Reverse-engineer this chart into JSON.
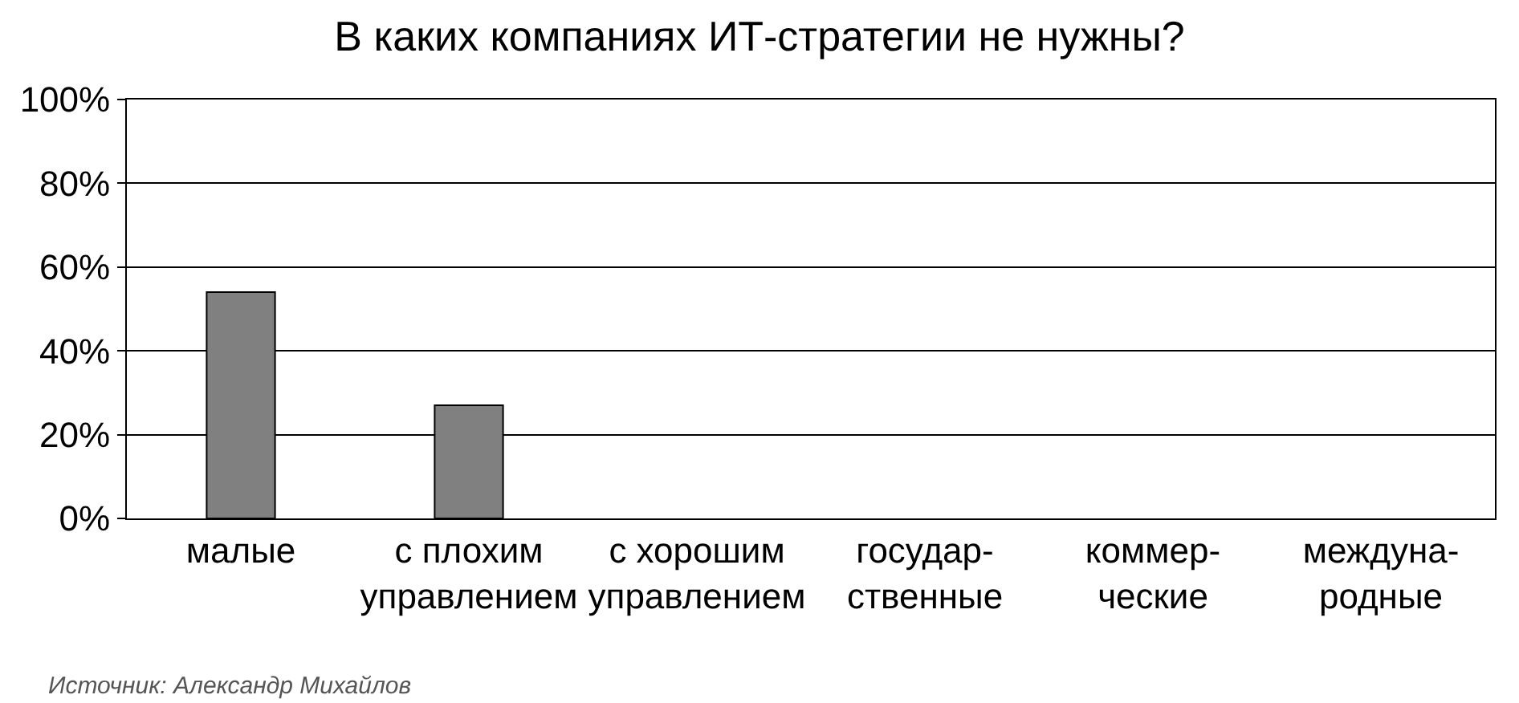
{
  "chart_data": {
    "type": "bar",
    "title": "В каких компаниях ИТ-стратегии не нужны?",
    "categories": [
      "малые",
      "с плохим\nуправлением",
      "с хорошим\nуправлением",
      "государ-\nственные",
      "коммер-\nческие",
      "междуна-\nродные"
    ],
    "values": [
      54,
      27,
      null,
      null,
      null,
      null
    ],
    "color": "#808080",
    "ylim": [
      0,
      100
    ],
    "yticks": [
      {
        "value": 0,
        "label": "0%"
      },
      {
        "value": 20,
        "label": "20%"
      },
      {
        "value": 40,
        "label": "40%"
      },
      {
        "value": 60,
        "label": "60%"
      },
      {
        "value": 80,
        "label": "80%"
      },
      {
        "value": 100,
        "label": "100%"
      }
    ],
    "grid": "y",
    "legend": false,
    "annotations": [
      "Источник: Александр Михайлов"
    ]
  }
}
